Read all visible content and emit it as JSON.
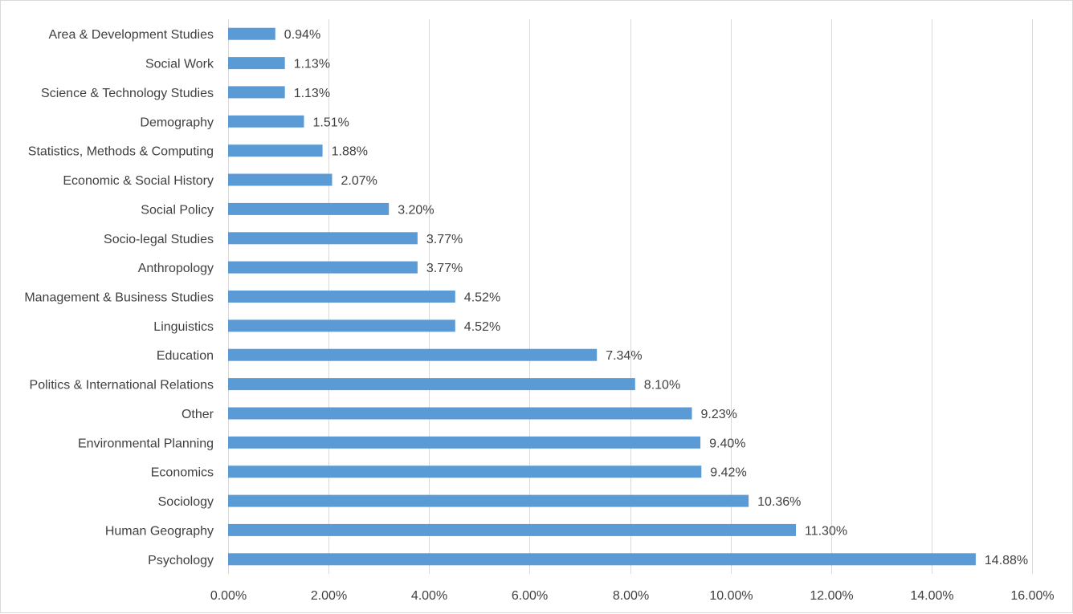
{
  "chart_data": {
    "type": "bar",
    "orientation": "horizontal",
    "categories": [
      "Area & Development Studies",
      "Social Work",
      "Science & Technology Studies",
      "Demography",
      "Statistics, Methods & Computing",
      "Economic & Social History",
      "Social Policy",
      "Socio-legal Studies",
      "Anthropology",
      "Management & Business Studies",
      "Linguistics",
      "Education",
      "Politics & International Relations",
      "Other",
      "Environmental Planning",
      "Economics",
      "Sociology",
      "Human Geography",
      "Psychology"
    ],
    "values": [
      0.94,
      1.13,
      1.13,
      1.51,
      1.88,
      2.07,
      3.2,
      3.77,
      3.77,
      4.52,
      4.52,
      7.34,
      8.1,
      9.23,
      9.4,
      9.42,
      10.36,
      11.3,
      14.88
    ],
    "value_labels": [
      "0.94%",
      "1.13%",
      "1.13%",
      "1.51%",
      "1.88%",
      "2.07%",
      "3.20%",
      "3.77%",
      "3.77%",
      "4.52%",
      "4.52%",
      "7.34%",
      "8.10%",
      "9.23%",
      "9.40%",
      "9.42%",
      "10.36%",
      "11.30%",
      "14.88%"
    ],
    "xlim": [
      0,
      16
    ],
    "x_ticks": [
      0,
      2,
      4,
      6,
      8,
      10,
      12,
      14,
      16
    ],
    "x_tick_labels": [
      "0.00%",
      "2.00%",
      "4.00%",
      "6.00%",
      "8.00%",
      "10.00%",
      "12.00%",
      "14.00%",
      "16.00%"
    ],
    "title": "",
    "xlabel": "",
    "ylabel": "",
    "grid": "vertical",
    "legend": "none",
    "colors": {
      "bar": "#5b9bd5",
      "grid": "#d9d9d9",
      "text": "#404040"
    }
  }
}
